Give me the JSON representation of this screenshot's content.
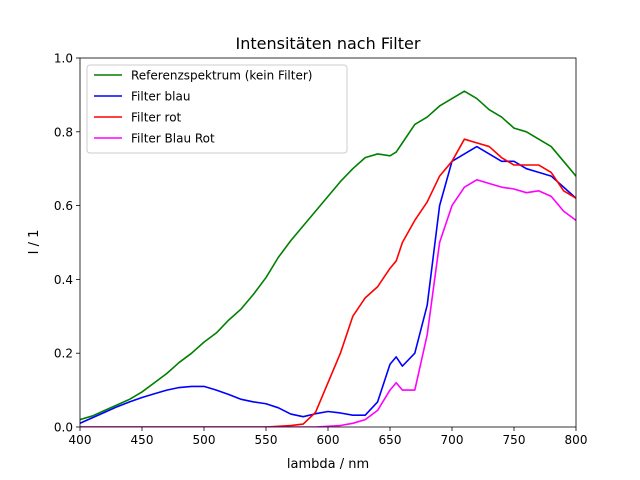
{
  "chart_data": {
    "type": "line",
    "title": "Intensitäten nach Filter",
    "xlabel": "lambda / nm",
    "ylabel": "I / 1",
    "xlim": [
      400,
      800
    ],
    "ylim": [
      0,
      1.0
    ],
    "xticks": [
      400,
      450,
      500,
      550,
      600,
      650,
      700,
      750,
      800
    ],
    "yticks": [
      0.0,
      0.2,
      0.4,
      0.6,
      0.8,
      1.0
    ],
    "xtick_labels": [
      "400",
      "450",
      "500",
      "550",
      "600",
      "650",
      "700",
      "750",
      "800"
    ],
    "ytick_labels": [
      "0.0",
      "0.2",
      "0.4",
      "0.6",
      "0.8",
      "1.0"
    ],
    "grid": false,
    "legend_position": "upper-left",
    "x": [
      400,
      410,
      420,
      430,
      440,
      450,
      460,
      470,
      480,
      490,
      500,
      510,
      520,
      530,
      540,
      550,
      560,
      570,
      580,
      590,
      600,
      610,
      620,
      630,
      640,
      650,
      655,
      660,
      670,
      680,
      690,
      700,
      710,
      720,
      730,
      740,
      750,
      760,
      770,
      780,
      790,
      800
    ],
    "series": [
      {
        "name": "Referenzspektrum (kein Filter)",
        "color": "#008000",
        "values": [
          0.02,
          0.03,
          0.045,
          0.06,
          0.075,
          0.095,
          0.12,
          0.145,
          0.175,
          0.2,
          0.23,
          0.255,
          0.29,
          0.32,
          0.36,
          0.405,
          0.46,
          0.505,
          0.545,
          0.585,
          0.625,
          0.665,
          0.7,
          0.73,
          0.74,
          0.735,
          0.745,
          0.77,
          0.82,
          0.84,
          0.87,
          0.89,
          0.91,
          0.89,
          0.86,
          0.84,
          0.81,
          0.8,
          0.78,
          0.76,
          0.72,
          0.68
        ]
      },
      {
        "name": "Filter blau",
        "color": "#0000ff",
        "values": [
          0.01,
          0.025,
          0.04,
          0.055,
          0.068,
          0.08,
          0.09,
          0.1,
          0.107,
          0.11,
          0.11,
          0.1,
          0.088,
          0.075,
          0.068,
          0.063,
          0.052,
          0.035,
          0.028,
          0.036,
          0.042,
          0.038,
          0.032,
          0.032,
          0.068,
          0.17,
          0.19,
          0.165,
          0.2,
          0.33,
          0.6,
          0.72,
          0.74,
          0.76,
          0.74,
          0.72,
          0.72,
          0.7,
          0.69,
          0.68,
          0.65,
          0.62
        ]
      },
      {
        "name": "Filter rot",
        "color": "#ff0000",
        "values": [
          0.0,
          0.0,
          0.0,
          0.0,
          0.0,
          0.0,
          0.0,
          0.0,
          0.0,
          0.0,
          0.0,
          0.0,
          0.0,
          0.0,
          0.0,
          0.0,
          0.002,
          0.004,
          0.008,
          0.04,
          0.12,
          0.2,
          0.3,
          0.35,
          0.38,
          0.43,
          0.45,
          0.5,
          0.56,
          0.61,
          0.68,
          0.72,
          0.78,
          0.77,
          0.76,
          0.73,
          0.71,
          0.71,
          0.71,
          0.69,
          0.64,
          0.62
        ]
      },
      {
        "name": "Filter Blau Rot",
        "color": "#ff00ff",
        "values": [
          0.0,
          0.0,
          0.0,
          0.0,
          0.0,
          0.0,
          0.0,
          0.0,
          0.0,
          0.0,
          0.0,
          0.0,
          0.0,
          0.0,
          0.0,
          0.0,
          0.0,
          0.0,
          0.0,
          0.0,
          0.002,
          0.004,
          0.01,
          0.02,
          0.045,
          0.1,
          0.12,
          0.1,
          0.1,
          0.25,
          0.5,
          0.6,
          0.65,
          0.67,
          0.66,
          0.65,
          0.645,
          0.635,
          0.64,
          0.625,
          0.585,
          0.56
        ]
      }
    ]
  }
}
